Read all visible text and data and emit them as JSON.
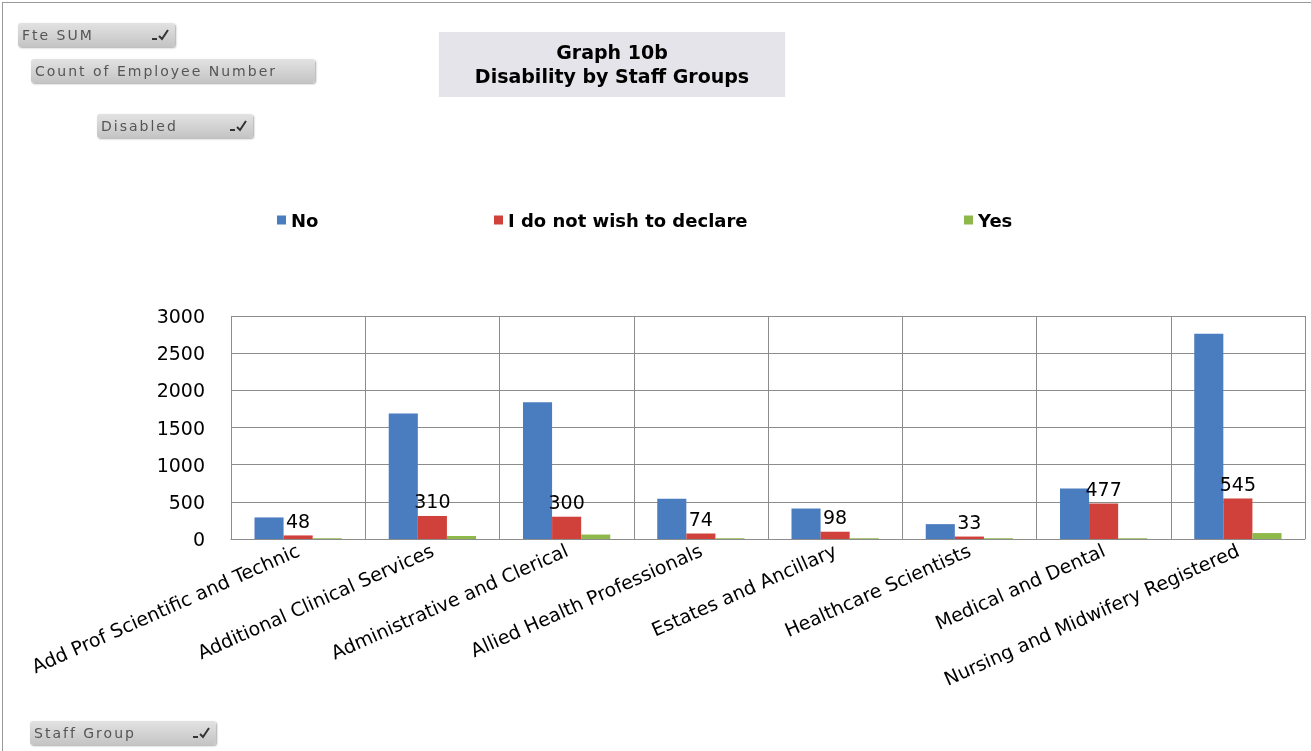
{
  "chart_data": {
    "type": "bar",
    "title": "Graph 10b",
    "subtitle": "Disability by Staff Groups",
    "xlabel": "Staff Group",
    "legend_title": "Disabled",
    "annotations": [
      "Fte SUM",
      "Count of Employee Number"
    ],
    "categories": [
      "Add Prof Scientific and Technic",
      "Additional Clinical Services",
      "Administrative and Clerical",
      "Allied Health Professionals",
      "Estates and Ancillary",
      "Healthcare Scientists",
      "Medical and Dental",
      "Nursing and Midwifery Registered"
    ],
    "series": [
      {
        "name": "No",
        "color": "#4a7cc0",
        "values": [
          290,
          1690,
          1840,
          540,
          410,
          200,
          680,
          2760
        ]
      },
      {
        "name": "I do not wish to declare",
        "color": "#d0413b",
        "values": [
          48,
          310,
          300,
          74,
          98,
          33,
          477,
          545
        ],
        "value_labels": [
          "48",
          "310",
          "300",
          "74",
          "98",
          "33",
          "477",
          "545"
        ]
      },
      {
        "name": "Yes",
        "color": "#8fb84a",
        "values": [
          10,
          40,
          60,
          10,
          10,
          10,
          10,
          80
        ]
      }
    ],
    "ylim": [
      0,
      3000
    ],
    "yticks": [
      0,
      500,
      1000,
      1500,
      2000,
      2500,
      3000
    ],
    "grid": true,
    "legend": "top"
  }
}
